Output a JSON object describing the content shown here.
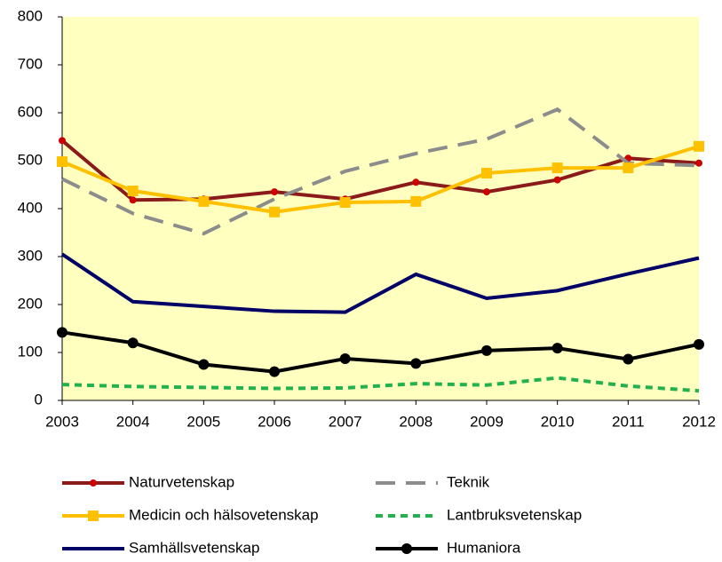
{
  "chart_data": {
    "type": "line",
    "x": [
      2003,
      2004,
      2005,
      2006,
      2007,
      2008,
      2009,
      2010,
      2011,
      2012
    ],
    "xlim": [
      2003,
      2012
    ],
    "xticks": [
      2003,
      2004,
      2005,
      2006,
      2007,
      2008,
      2009,
      2010,
      2011,
      2012
    ],
    "ylim": [
      0,
      800
    ],
    "yticks": [
      0,
      100,
      200,
      300,
      400,
      500,
      600,
      700,
      800
    ],
    "plot_background": "#ffffc0",
    "legend": "bottom",
    "series": [
      {
        "name": "Naturvetenskap",
        "color": "#8b1a1a",
        "marker": "circle",
        "marker_color": "#cc0000",
        "dash": false,
        "values": [
          542,
          418,
          420,
          435,
          420,
          455,
          435,
          460,
          505,
          495
        ]
      },
      {
        "name": "Teknik",
        "color": "#8c8c8c",
        "marker": "none",
        "dash": true,
        "values": [
          462,
          390,
          348,
          420,
          478,
          515,
          545,
          607,
          495,
          490
        ]
      },
      {
        "name": "Medicin och hälsovetenskap",
        "color": "#ffc000",
        "marker": "square",
        "marker_color": "#ffc000",
        "dash": false,
        "values": [
          498,
          437,
          415,
          393,
          413,
          415,
          474,
          485,
          485,
          530
        ]
      },
      {
        "name": "Lantbruksvetenskap",
        "color": "#22b14c",
        "marker": "none",
        "dash": true,
        "values": [
          33,
          29,
          27,
          25,
          26,
          35,
          32,
          47,
          30,
          20
        ]
      },
      {
        "name": "Samhällsvetenskap",
        "color": "#000066",
        "marker": "none",
        "dash": false,
        "values": [
          305,
          206,
          196,
          186,
          184,
          263,
          213,
          229,
          264,
          297
        ]
      },
      {
        "name": "Humaniora",
        "color": "#000000",
        "marker": "circle",
        "marker_color": "#000000",
        "dash": false,
        "values": [
          142,
          120,
          75,
          60,
          87,
          77,
          104,
          109,
          86,
          117
        ]
      }
    ]
  }
}
